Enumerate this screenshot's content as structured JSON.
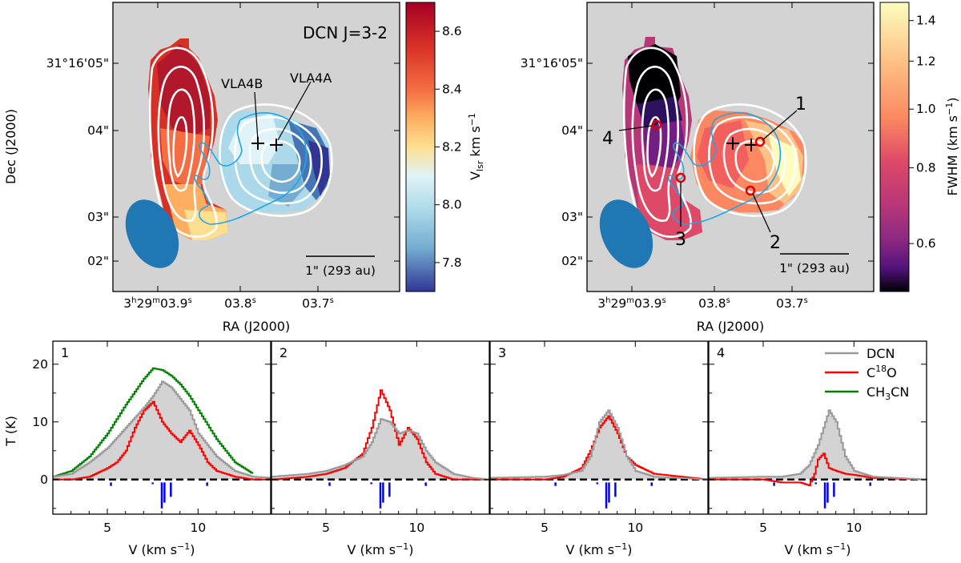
{
  "chart_data": [
    {
      "type": "heatmap",
      "title": "DCN J=3-2",
      "xlabel": "RA (J2000)",
      "ylabel": "Dec (J2000)",
      "xticks": [
        "3h29m03.9s",
        "03.8s",
        "03.7s"
      ],
      "yticks": [
        "31°16'05\"",
        "04\"",
        "03\"",
        "02\""
      ],
      "colorbar_label": "Vlsr km s-1",
      "colorbar_range": [
        7.7,
        8.7
      ],
      "colorbar_ticks": [
        "8.6",
        "8.4",
        "8.2",
        "8.0",
        "7.8"
      ],
      "sources": [
        "VLA4B",
        "VLA4A"
      ],
      "scalebar": "1\" (293 au)"
    },
    {
      "type": "heatmap",
      "title": "",
      "xlabel": "RA (J2000)",
      "ylabel": "",
      "xticks": [
        "3h29m03.9s",
        "03.8s",
        "03.7s"
      ],
      "yticks": [
        "31°16'05\"",
        "04\"",
        "03\"",
        "02\""
      ],
      "colorbar_label": "FWHM (km s-1)",
      "colorbar_scale": "log",
      "colorbar_range": [
        0.5,
        1.5
      ],
      "colorbar_ticks": [
        "1.4",
        "1.2",
        "1.0",
        "0.8",
        "0.6"
      ],
      "positions": [
        "1",
        "2",
        "3",
        "4"
      ],
      "scalebar": "1\" (293 au)"
    },
    {
      "type": "line",
      "panels": [
        {
          "label": "1",
          "series": [
            {
              "name": "DCN",
              "x": [
                2,
                3,
                4,
                5,
                6,
                7,
                7.5,
                8,
                8.5,
                9,
                9.5,
                10,
                11,
                12,
                13,
                14
              ],
              "y": [
                0.5,
                1,
                3,
                5.5,
                9,
                12.5,
                14.5,
                17,
                16,
                14,
                12,
                8,
                4,
                1.5,
                0.5,
                0.3
              ]
            },
            {
              "name": "C18O",
              "x": [
                2,
                3,
                4,
                5,
                5.5,
                6,
                6.5,
                7,
                7.5,
                8,
                8.5,
                9,
                9.5,
                10,
                10.5,
                11,
                12,
                13,
                14
              ],
              "y": [
                0,
                0,
                0.5,
                2,
                3,
                5,
                9,
                12,
                13.5,
                10,
                8,
                6.5,
                8.5,
                6,
                3,
                1.5,
                0.5,
                0,
                0
              ]
            },
            {
              "name": "CH3CN",
              "x": [
                2,
                3,
                4,
                5,
                6,
                7,
                7.5,
                8,
                8.5,
                9,
                9.5,
                10,
                11,
                12,
                13
              ],
              "y": [
                0.5,
                1.5,
                4,
                8,
                13,
                17.5,
                19.3,
                19,
                18,
                16.5,
                14.5,
                12,
                7,
                3,
                1
              ]
            }
          ]
        },
        {
          "label": "2",
          "series": [
            {
              "name": "DCN",
              "x": [
                2,
                4,
                5,
                6,
                7,
                7.5,
                8,
                8.5,
                9,
                9.5,
                10,
                10.5,
                11,
                12,
                13,
                14
              ],
              "y": [
                0.5,
                1,
                1.5,
                2.5,
                4,
                6.5,
                10.5,
                10,
                8,
                8.5,
                8,
                5,
                3,
                1,
                0.3,
                0
              ]
            },
            {
              "name": "C18O",
              "x": [
                2,
                4,
                5,
                6,
                7,
                7.5,
                8,
                8.5,
                9,
                9.5,
                10,
                10.5,
                11,
                12,
                14
              ],
              "y": [
                0,
                0.5,
                1,
                2,
                4.5,
                9,
                15.5,
                12,
                6,
                9,
                7,
                3,
                1,
                0,
                0
              ]
            }
          ]
        },
        {
          "label": "3",
          "series": [
            {
              "name": "DCN",
              "x": [
                2,
                5,
                6,
                7,
                7.5,
                8,
                8.5,
                9,
                9.5,
                10,
                11,
                14
              ],
              "y": [
                0.3,
                0.5,
                0.8,
                1.5,
                4,
                10,
                12,
                9,
                4,
                1.5,
                0.5,
                0
              ]
            },
            {
              "name": "C18O",
              "x": [
                2,
                5,
                6,
                7,
                7.5,
                8,
                8.5,
                9,
                9.5,
                10,
                11,
                14
              ],
              "y": [
                0,
                0,
                0.5,
                2,
                5,
                9,
                11,
                8,
                4,
                2.5,
                1,
                0
              ]
            }
          ]
        },
        {
          "label": "4",
          "series": [
            {
              "name": "DCN",
              "x": [
                2,
                5,
                6,
                7,
                7.5,
                8,
                8.3,
                8.6,
                9,
                9.5,
                10,
                11,
                14
              ],
              "y": [
                0.3,
                0.5,
                0.5,
                1,
                2.5,
                6,
                9,
                12,
                10,
                4,
                1.5,
                0.5,
                0
              ]
            },
            {
              "name": "C18O",
              "x": [
                2,
                5,
                6,
                7,
                7.5,
                7.8,
                8,
                8.3,
                8.6,
                9,
                9.5,
                10,
                11,
                14
              ],
              "y": [
                0,
                0,
                -0.5,
                -0.5,
                -1,
                1,
                3.5,
                4.5,
                2,
                1.5,
                1,
                0.8,
                0.3,
                0
              ]
            }
          ]
        }
      ],
      "xlabel": "V (km s-1)",
      "ylabel": "T (K)",
      "xlim": [
        2,
        14
      ],
      "ylim": [
        -6,
        24
      ],
      "xticks": [
        5,
        10
      ],
      "yticks": [
        0,
        10,
        20
      ],
      "legend": [
        "DCN",
        "C18O",
        "CH3CN"
      ],
      "legend_position": "top-right",
      "hyperfine_components": [
        {
          "v": 5.2,
          "strength": 0.6
        },
        {
          "v": 7.5,
          "strength": 0.3
        },
        {
          "v": 8.0,
          "strength": 4.5
        },
        {
          "v": 8.15,
          "strength": 3.5
        },
        {
          "v": 8.5,
          "strength": 2.5
        },
        {
          "v": 10.5,
          "strength": 0.6
        }
      ],
      "hyperfine_panel_offsets": [
        0,
        0,
        0.4,
        0.4
      ]
    }
  ],
  "colors": {
    "DCN": "#999999",
    "C18O": "#ff0000",
    "CH3CN": "#008000",
    "contour_white": "#ffffff",
    "contour_cyan": "#1ea7e6",
    "beam": "#1f77b4",
    "map_bg": "#d3d3d3",
    "hyperfine": "#0000ff"
  }
}
